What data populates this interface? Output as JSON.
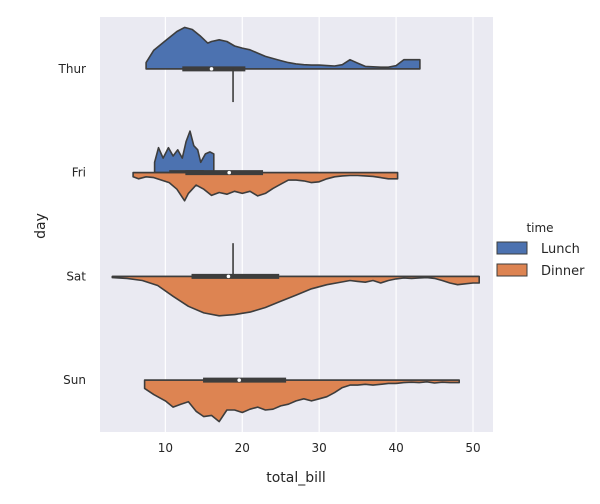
{
  "chart_data": {
    "type": "violin",
    "orientation": "horizontal",
    "split": true,
    "inner": "box",
    "cut": 0,
    "xlabel": "total_bill",
    "ylabel": "day",
    "xlim": [
      1.5,
      52.6
    ],
    "xticks": [
      10,
      20,
      30,
      40,
      50
    ],
    "grid": true,
    "categories": [
      "Thur",
      "Fri",
      "Sat",
      "Sun"
    ],
    "legend": {
      "title": "time",
      "placement": "right"
    },
    "series": [
      {
        "name": "Lunch",
        "color": "#4c72b0",
        "violins": [
          {
            "category": "Thur",
            "min": 7.5,
            "q1": 12.2,
            "median": 16.0,
            "q3": 20.4,
            "max": 43.1,
            "profile": [
              [
                7.5,
                0.15
              ],
              [
                8.5,
                0.45
              ],
              [
                10,
                0.68
              ],
              [
                11.5,
                0.9
              ],
              [
                12.5,
                1.0
              ],
              [
                13.5,
                0.95
              ],
              [
                14.5,
                0.8
              ],
              [
                15.5,
                0.62
              ],
              [
                16,
                0.66
              ],
              [
                17,
                0.7
              ],
              [
                18,
                0.66
              ],
              [
                19,
                0.55
              ],
              [
                20,
                0.5
              ],
              [
                21,
                0.46
              ],
              [
                22,
                0.38
              ],
              [
                23,
                0.3
              ],
              [
                24,
                0.25
              ],
              [
                25,
                0.2
              ],
              [
                26,
                0.15
              ],
              [
                27,
                0.12
              ],
              [
                28,
                0.1
              ],
              [
                29,
                0.09
              ],
              [
                30,
                0.09
              ],
              [
                31,
                0.08
              ],
              [
                32,
                0.07
              ],
              [
                33,
                0.1
              ],
              [
                34,
                0.22
              ],
              [
                35,
                0.14
              ],
              [
                36,
                0.06
              ],
              [
                37,
                0.05
              ],
              [
                38,
                0.04
              ],
              [
                39,
                0.04
              ],
              [
                40,
                0.08
              ],
              [
                41,
                0.22
              ],
              [
                42,
                0.22
              ],
              [
                43.1,
                0.22
              ]
            ]
          },
          {
            "category": "Fri",
            "min": 8.6,
            "q1": 10.5,
            "median": 13.4,
            "q3": 15.0,
            "max": 16.3,
            "profile": [
              [
                8.6,
                0.25
              ],
              [
                9.1,
                0.6
              ],
              [
                9.7,
                0.35
              ],
              [
                10.4,
                0.6
              ],
              [
                11,
                0.4
              ],
              [
                11.6,
                0.55
              ],
              [
                12.2,
                0.35
              ],
              [
                12.7,
                0.75
              ],
              [
                13.2,
                1.0
              ],
              [
                13.7,
                0.65
              ],
              [
                14.2,
                0.55
              ],
              [
                14.6,
                0.25
              ],
              [
                15.2,
                0.45
              ],
              [
                15.8,
                0.5
              ],
              [
                16.3,
                0.45
              ]
            ]
          },
          {
            "category": "Sat",
            "min": 18.8,
            "q1": 18.8,
            "median": 18.8,
            "q3": 18.8,
            "max": 18.8,
            "profile": []
          }
        ]
      },
      {
        "name": "Dinner",
        "color": "#dd8452",
        "violins": [
          {
            "category": "Thur",
            "min": 18.8,
            "q1": 18.8,
            "median": 18.8,
            "q3": 18.8,
            "max": 18.8,
            "profile": []
          },
          {
            "category": "Fri",
            "min": 5.8,
            "q1": 12.6,
            "median": 18.3,
            "q3": 22.7,
            "max": 40.2,
            "profile": [
              [
                5.8,
                0.1
              ],
              [
                6.5,
                0.15
              ],
              [
                7.5,
                0.1
              ],
              [
                8.5,
                0.12
              ],
              [
                9.5,
                0.18
              ],
              [
                10.5,
                0.24
              ],
              [
                11.5,
                0.4
              ],
              [
                12.5,
                0.68
              ],
              [
                13,
                0.5
              ],
              [
                14,
                0.3
              ],
              [
                15,
                0.4
              ],
              [
                16,
                0.55
              ],
              [
                17,
                0.48
              ],
              [
                18,
                0.52
              ],
              [
                19,
                0.45
              ],
              [
                20,
                0.5
              ],
              [
                21,
                0.45
              ],
              [
                22,
                0.56
              ],
              [
                23,
                0.5
              ],
              [
                24,
                0.38
              ],
              [
                25,
                0.28
              ],
              [
                26,
                0.18
              ],
              [
                27,
                0.18
              ],
              [
                28,
                0.2
              ],
              [
                29,
                0.24
              ],
              [
                30,
                0.22
              ],
              [
                31,
                0.15
              ],
              [
                32,
                0.1
              ],
              [
                33,
                0.08
              ],
              [
                34,
                0.07
              ],
              [
                35,
                0.07
              ],
              [
                36,
                0.08
              ],
              [
                37,
                0.09
              ],
              [
                38,
                0.12
              ],
              [
                39,
                0.15
              ],
              [
                40.2,
                0.15
              ]
            ]
          },
          {
            "category": "Sat",
            "min": 3.1,
            "q1": 13.4,
            "median": 18.2,
            "q3": 24.8,
            "max": 50.8,
            "profile": [
              [
                3.1,
                0.03
              ],
              [
                5,
                0.05
              ],
              [
                7,
                0.1
              ],
              [
                9,
                0.22
              ],
              [
                11,
                0.48
              ],
              [
                13,
                0.72
              ],
              [
                15,
                0.88
              ],
              [
                17,
                0.95
              ],
              [
                19,
                0.92
              ],
              [
                21,
                0.86
              ],
              [
                23,
                0.75
              ],
              [
                25,
                0.6
              ],
              [
                27,
                0.45
              ],
              [
                29,
                0.3
              ],
              [
                31,
                0.2
              ],
              [
                32.5,
                0.15
              ],
              [
                34,
                0.1
              ],
              [
                35,
                0.12
              ],
              [
                36,
                0.14
              ],
              [
                37,
                0.1
              ],
              [
                38,
                0.16
              ],
              [
                39,
                0.1
              ],
              [
                40,
                0.06
              ],
              [
                41,
                0.04
              ],
              [
                42,
                0.05
              ],
              [
                43,
                0.04
              ],
              [
                44,
                0.03
              ],
              [
                45,
                0.05
              ],
              [
                46,
                0.1
              ],
              [
                47,
                0.16
              ],
              [
                48,
                0.2
              ],
              [
                49,
                0.18
              ],
              [
                50,
                0.16
              ],
              [
                50.8,
                0.16
              ]
            ]
          },
          {
            "category": "Sun",
            "min": 7.3,
            "q1": 14.9,
            "median": 19.6,
            "q3": 25.7,
            "max": 48.2,
            "profile": [
              [
                7.3,
                0.2
              ],
              [
                8.5,
                0.35
              ],
              [
                10,
                0.5
              ],
              [
                11,
                0.65
              ],
              [
                12,
                0.58
              ],
              [
                13,
                0.52
              ],
              [
                14,
                0.75
              ],
              [
                15,
                0.88
              ],
              [
                16,
                0.85
              ],
              [
                17,
                1.0
              ],
              [
                18,
                0.72
              ],
              [
                19,
                0.72
              ],
              [
                20,
                0.78
              ],
              [
                21,
                0.7
              ],
              [
                22,
                0.65
              ],
              [
                23,
                0.72
              ],
              [
                24,
                0.7
              ],
              [
                25,
                0.62
              ],
              [
                26,
                0.58
              ],
              [
                27,
                0.5
              ],
              [
                28,
                0.45
              ],
              [
                29,
                0.5
              ],
              [
                30,
                0.45
              ],
              [
                31,
                0.4
              ],
              [
                32,
                0.3
              ],
              [
                33,
                0.18
              ],
              [
                34,
                0.12
              ],
              [
                35,
                0.12
              ],
              [
                36,
                0.1
              ],
              [
                37,
                0.12
              ],
              [
                38,
                0.1
              ],
              [
                39,
                0.08
              ],
              [
                40,
                0.08
              ],
              [
                41,
                0.06
              ],
              [
                42,
                0.05
              ],
              [
                43,
                0.06
              ],
              [
                44,
                0.04
              ],
              [
                45,
                0.07
              ],
              [
                46,
                0.05
              ],
              [
                47,
                0.06
              ],
              [
                48.2,
                0.06
              ]
            ]
          }
        ]
      }
    ]
  }
}
